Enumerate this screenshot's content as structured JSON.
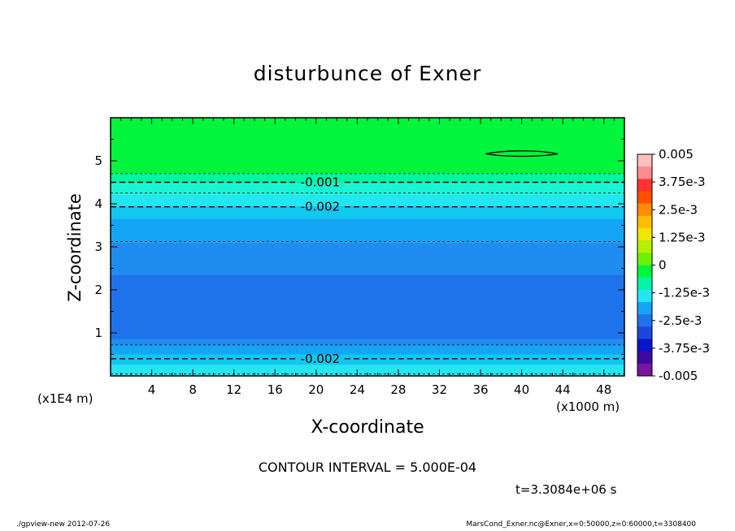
{
  "chart_data": {
    "type": "contour",
    "title": "disturbunce of Exner",
    "xlabel": "X-coordinate",
    "ylabel": "Z-coordinate",
    "x_unit_left": "(x1E4 m)",
    "x_unit_right": "(x1000 m)",
    "xlim": [
      0,
      50
    ],
    "ylim": [
      0,
      6
    ],
    "x_ticks": [
      4,
      8,
      12,
      16,
      20,
      24,
      28,
      32,
      36,
      40,
      44,
      48
    ],
    "y_ticks": [
      1,
      2,
      3,
      4,
      5
    ],
    "field_bands_by_height": [
      {
        "z0": 4.7,
        "z1": 6.0,
        "color": "#00f53c"
      },
      {
        "z0": 4.48,
        "z1": 4.7,
        "color": "#00f5a5"
      },
      {
        "z0": 4.22,
        "z1": 4.48,
        "color": "#19f5d2"
      },
      {
        "z0": 3.95,
        "z1": 4.22,
        "color": "#23e6f0"
      },
      {
        "z0": 3.65,
        "z1": 3.95,
        "color": "#10c8f0"
      },
      {
        "z0": 3.1,
        "z1": 3.65,
        "color": "#14a5f5"
      },
      {
        "z0": 2.35,
        "z1": 3.1,
        "color": "#1e8cf0"
      },
      {
        "z0": 0.85,
        "z1": 2.35,
        "color": "#1e73eb"
      },
      {
        "z0": 0.7,
        "z1": 0.85,
        "color": "#1e8cf0"
      },
      {
        "z0": 0.5,
        "z1": 0.7,
        "color": "#14a5f5"
      },
      {
        "z0": 0.25,
        "z1": 0.5,
        "color": "#10c8f0"
      },
      {
        "z0": 0.0,
        "z1": 0.25,
        "color": "#23e6f0"
      }
    ],
    "contours": [
      {
        "z": 5.16,
        "x0": 36.5,
        "x1": 43.5,
        "style": "solid",
        "kind": "closed"
      },
      {
        "z": 4.7,
        "style": "dashed-thin"
      },
      {
        "z": 4.5,
        "style": "dashed",
        "label": "-0.001",
        "label_x": 20.4
      },
      {
        "z": 4.25,
        "style": "dashed-thin"
      },
      {
        "z": 3.93,
        "style": "dashed",
        "label": "-0.002",
        "label_x": 20.4
      },
      {
        "z": 3.12,
        "style": "dashed-thin"
      },
      {
        "z": 0.72,
        "style": "dashed-thin"
      },
      {
        "z": 0.4,
        "style": "dashed",
        "label": "-0.002",
        "label_x": 20.4
      },
      {
        "z": 0.05,
        "style": "dashed-thin"
      }
    ],
    "colorbar": {
      "labels": [
        "0.005",
        "3.75e-3",
        "2.5e-3",
        "1.25e-3",
        "0",
        "-1.25e-3",
        "-2.5e-3",
        "-3.75e-3",
        "-0.005"
      ],
      "colors_top_to_bottom": [
        "#ffbebe",
        "#ff8c8c",
        "#ff3232",
        "#ff5000",
        "#ff8c00",
        "#ffbe00",
        "#f0e600",
        "#b4f000",
        "#6ef000",
        "#00f53c",
        "#00f5a5",
        "#23e6f0",
        "#14a5f5",
        "#1e73eb",
        "#1e46dc",
        "#0a14c8",
        "#3c0aa0",
        "#7814a0"
      ]
    },
    "contour_interval": "CONTOUR INTERVAL = 5.000E-04",
    "time": "t=3.3084e+06 s"
  },
  "footer": {
    "left": "./gpview-new   2012-07-26",
    "right": "MarsCond_Exner.nc@Exner,x=0:50000,z=0:60000,t=3308400"
  }
}
